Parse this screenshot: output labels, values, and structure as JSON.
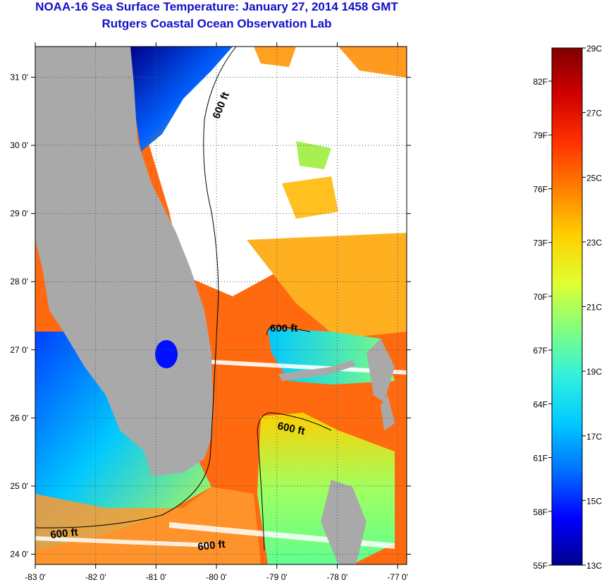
{
  "title": "NOAA-16 Sea Surface Temperature:  January 27, 2014 1458 GMT",
  "subtitle": "Rutgers Coastal Ocean Observation Lab",
  "map": {
    "lon_range": [
      -83,
      -76.85
    ],
    "lat_range": [
      23.85,
      31.45
    ],
    "lon_ticks": [
      "-83 0'",
      "-82 0'",
      "-81 0'",
      "-80 0'",
      "-79 0'",
      "-78 0'",
      "-77 0'"
    ],
    "lat_ticks": [
      "24 0'",
      "25 0'",
      "26 0'",
      "27 0'",
      "28 0'",
      "29 0'",
      "30 0'",
      "31 0'"
    ],
    "contour_label": "600 ft",
    "land_color": "#a9a9a9",
    "no_data_color": "#ffffff"
  },
  "colorbar": {
    "celsius_labels": [
      "29C",
      "27C",
      "25C",
      "23C",
      "21C",
      "19C",
      "17C",
      "15C",
      "13C"
    ],
    "fahrenheit_labels": [
      "82F",
      "79F",
      "76F",
      "73F",
      "70F",
      "67F",
      "64F",
      "61F",
      "58F",
      "55F"
    ],
    "colors": [
      "#00008c",
      "#0000ff",
      "#0070ff",
      "#00c8ff",
      "#30f0e0",
      "#80ff80",
      "#e0ff30",
      "#ffd000",
      "#ff8000",
      "#ff3000",
      "#d00000",
      "#800000"
    ]
  }
}
